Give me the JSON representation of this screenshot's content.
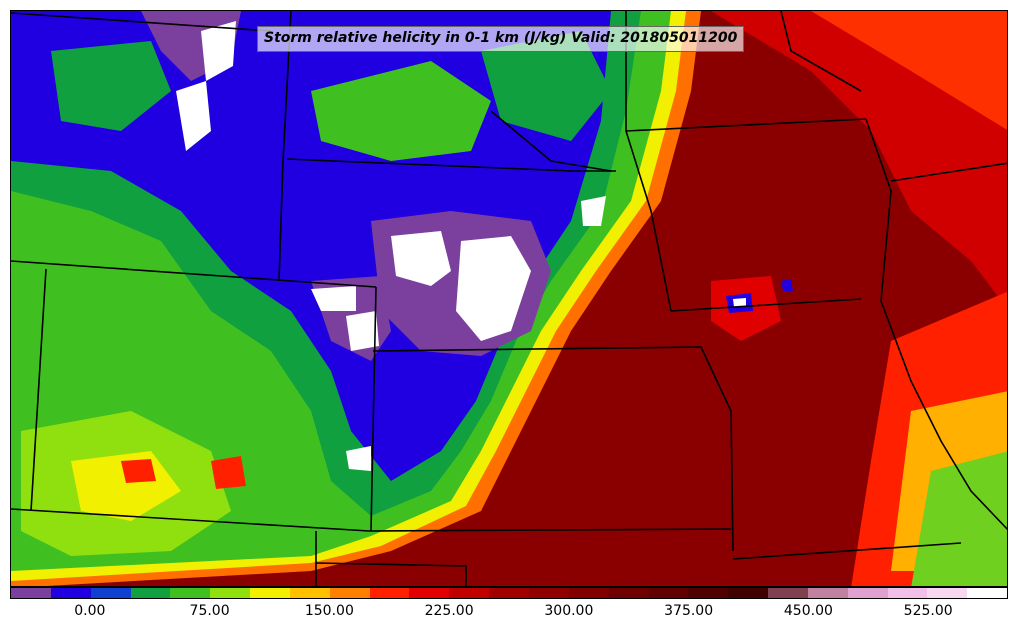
{
  "title": "Storm relative helicity in 0-1 km (J/kg) Valid: 201805011200",
  "colorbar": {
    "min": -50,
    "max": 575,
    "colors": [
      "#7b3f9e",
      "#2000e0",
      "#1040d0",
      "#10a040",
      "#40c020",
      "#90e010",
      "#f0f000",
      "#ffc000",
      "#ff8000",
      "#ff2000",
      "#e00000",
      "#c00000",
      "#a00000",
      "#900000",
      "#800000",
      "#700000",
      "#600000",
      "#500000",
      "#400000",
      "#804050",
      "#c080a0",
      "#e0a0d0",
      "#f0c0e8",
      "#f8d8f0",
      "#ffffff"
    ],
    "tick_labels": [
      "0.00",
      "75.00",
      "150.00",
      "225.00",
      "300.00",
      "375.00",
      "450.00",
      "525.00"
    ],
    "tick_values": [
      0,
      75,
      150,
      225,
      300,
      375,
      450,
      525
    ]
  },
  "field_colors": {
    "purple": "#7b3f9e",
    "blue": "#2000e0",
    "green": "#1aa034",
    "lightgreen": "#50c820",
    "yellow": "#e0f000",
    "orange": "#ff8000",
    "red": "#e00000",
    "darkred": "#8a0000",
    "white": "#ffffff"
  }
}
